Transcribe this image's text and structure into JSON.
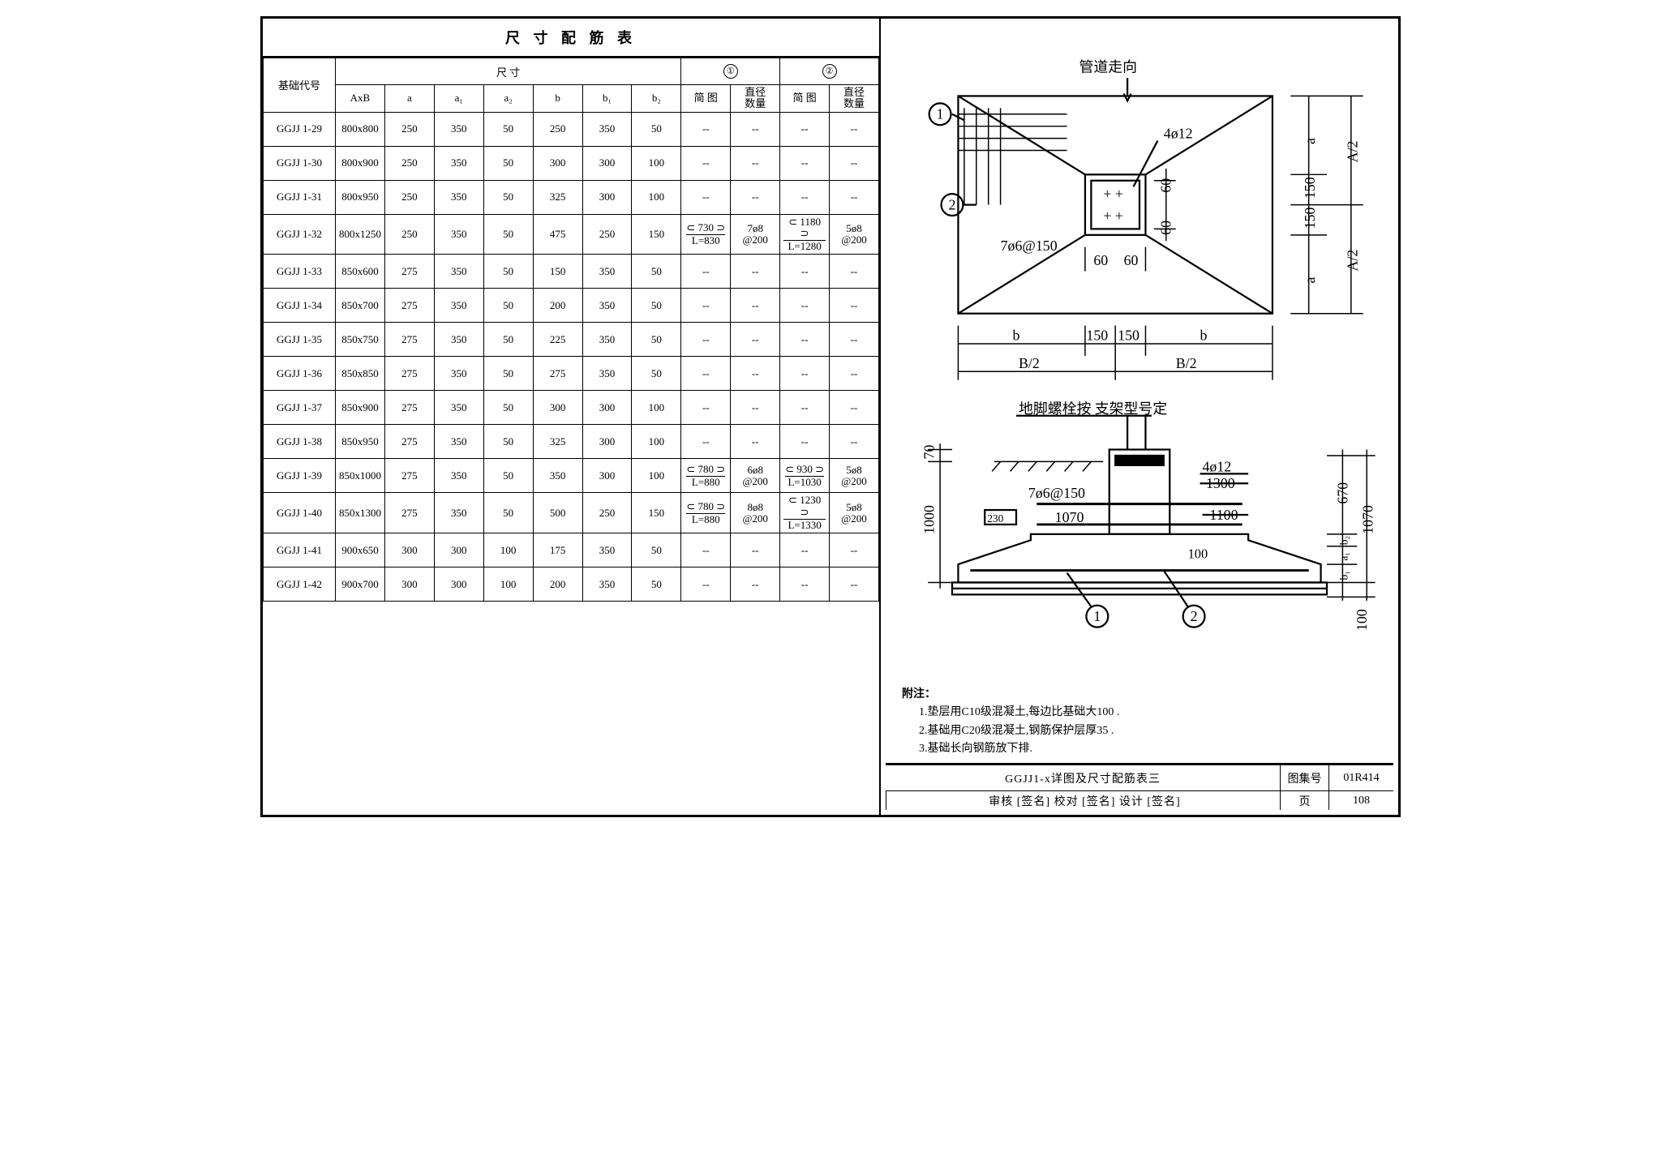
{
  "table": {
    "title": "尺 寸 配 筋 表",
    "header": {
      "id": "基础代号",
      "dim_group": "尺    寸",
      "g1": "①",
      "g2": "②",
      "cols": [
        "AxB",
        "a",
        "a₁",
        "a₂",
        "b",
        "b₁",
        "b₂"
      ],
      "sketch": "简  图",
      "spec": "直径\n数量"
    },
    "rows": [
      {
        "id": "GGJJ 1-29",
        "axb": "800x800",
        "a": "250",
        "a1": "350",
        "a2": "50",
        "b": "250",
        "b1": "350",
        "b2": "50",
        "s1": "--",
        "p1": "--",
        "s2": "--",
        "p2": "--"
      },
      {
        "id": "GGJJ 1-30",
        "axb": "800x900",
        "a": "250",
        "a1": "350",
        "a2": "50",
        "b": "300",
        "b1": "300",
        "b2": "100",
        "s1": "--",
        "p1": "--",
        "s2": "--",
        "p2": "--"
      },
      {
        "id": "GGJJ 1-31",
        "axb": "800x950",
        "a": "250",
        "a1": "350",
        "a2": "50",
        "b": "325",
        "b1": "300",
        "b2": "100",
        "s1": "--",
        "p1": "--",
        "s2": "--",
        "p2": "--"
      },
      {
        "id": "GGJJ 1-32",
        "axb": "800x1250",
        "a": "250",
        "a1": "350",
        "a2": "50",
        "b": "475",
        "b1": "250",
        "b2": "150",
        "s1t": "730",
        "s1b": "L=830",
        "p1": "7ø8\n@200",
        "s2t": "1180",
        "s2b": "L=1280",
        "p2": "5ø8\n@200"
      },
      {
        "id": "GGJJ 1-33",
        "axb": "850x600",
        "a": "275",
        "a1": "350",
        "a2": "50",
        "b": "150",
        "b1": "350",
        "b2": "50",
        "s1": "--",
        "p1": "--",
        "s2": "--",
        "p2": "--"
      },
      {
        "id": "GGJJ 1-34",
        "axb": "850x700",
        "a": "275",
        "a1": "350",
        "a2": "50",
        "b": "200",
        "b1": "350",
        "b2": "50",
        "s1": "--",
        "p1": "--",
        "s2": "--",
        "p2": "--"
      },
      {
        "id": "GGJJ 1-35",
        "axb": "850x750",
        "a": "275",
        "a1": "350",
        "a2": "50",
        "b": "225",
        "b1": "350",
        "b2": "50",
        "s1": "--",
        "p1": "--",
        "s2": "--",
        "p2": "--"
      },
      {
        "id": "GGJJ 1-36",
        "axb": "850x850",
        "a": "275",
        "a1": "350",
        "a2": "50",
        "b": "275",
        "b1": "350",
        "b2": "50",
        "s1": "--",
        "p1": "--",
        "s2": "--",
        "p2": "--"
      },
      {
        "id": "GGJJ 1-37",
        "axb": "850x900",
        "a": "275",
        "a1": "350",
        "a2": "50",
        "b": "300",
        "b1": "300",
        "b2": "100",
        "s1": "--",
        "p1": "--",
        "s2": "--",
        "p2": "--"
      },
      {
        "id": "GGJJ 1-38",
        "axb": "850x950",
        "a": "275",
        "a1": "350",
        "a2": "50",
        "b": "325",
        "b1": "300",
        "b2": "100",
        "s1": "--",
        "p1": "--",
        "s2": "--",
        "p2": "--"
      },
      {
        "id": "GGJJ 1-39",
        "axb": "850x1000",
        "a": "275",
        "a1": "350",
        "a2": "50",
        "b": "350",
        "b1": "300",
        "b2": "100",
        "s1t": "780",
        "s1b": "L=880",
        "p1": "6ø8\n@200",
        "s2t": "930",
        "s2b": "L=1030",
        "p2": "5ø8\n@200"
      },
      {
        "id": "GGJJ 1-40",
        "axb": "850x1300",
        "a": "275",
        "a1": "350",
        "a2": "50",
        "b": "500",
        "b1": "250",
        "b2": "150",
        "s1t": "780",
        "s1b": "L=880",
        "p1": "8ø8\n@200",
        "s2t": "1230",
        "s2b": "L=1330",
        "p2": "5ø8\n@200"
      },
      {
        "id": "GGJJ 1-41",
        "axb": "900x650",
        "a": "300",
        "a1": "300",
        "a2": "100",
        "b": "175",
        "b1": "350",
        "b2": "50",
        "s1": "--",
        "p1": "--",
        "s2": "--",
        "p2": "--"
      },
      {
        "id": "GGJJ 1-42",
        "axb": "900x700",
        "a": "300",
        "a1": "300",
        "a2": "100",
        "b": "200",
        "b1": "350",
        "b2": "50",
        "s1": "--",
        "p1": "--",
        "s2": "--",
        "p2": "--"
      }
    ]
  },
  "diagram": {
    "top": {
      "label_pipe": "管道走向",
      "label_4d12": "4ø12",
      "label_7d6": "7ø6@150",
      "dim60a": "60",
      "dim60b": "60",
      "dim150": "150",
      "dim_a": "a",
      "dim_A2": "A/2",
      "dim_b": "b",
      "dim_B2": "B/2"
    },
    "bot": {
      "label_anchor": "地脚螺栓按\n支架型号定",
      "label_4d12": "4ø12",
      "label_1300": "1300",
      "label_7d6": "7ø6@150",
      "label_1070": "1070",
      "label_1100": "1100",
      "label_230": "230",
      "dim70": "70",
      "dim1000": "1000",
      "dim670": "670",
      "dim1070": "1070",
      "dim_b1": "b₁",
      "dim_b2": "b₂",
      "dim_a1": "a₁",
      "dim100a": "100",
      "dim100b": "100"
    },
    "notes_title": "附注：",
    "notes": [
      "1.垫层用C10级混凝土,每边比基础大100 .",
      "2.基础用C20级混凝土,钢筋保护层厚35 .",
      "3.基础长向钢筋放下排."
    ]
  },
  "titleblock": {
    "main": "GGJJ1-x详图及尺寸配筋表三",
    "set_label": "图集号",
    "set_no": "01R414",
    "page_label": "页",
    "page_no": "108",
    "foot": "审核 [签名] 校对 [签名] 设计 [签名]"
  }
}
